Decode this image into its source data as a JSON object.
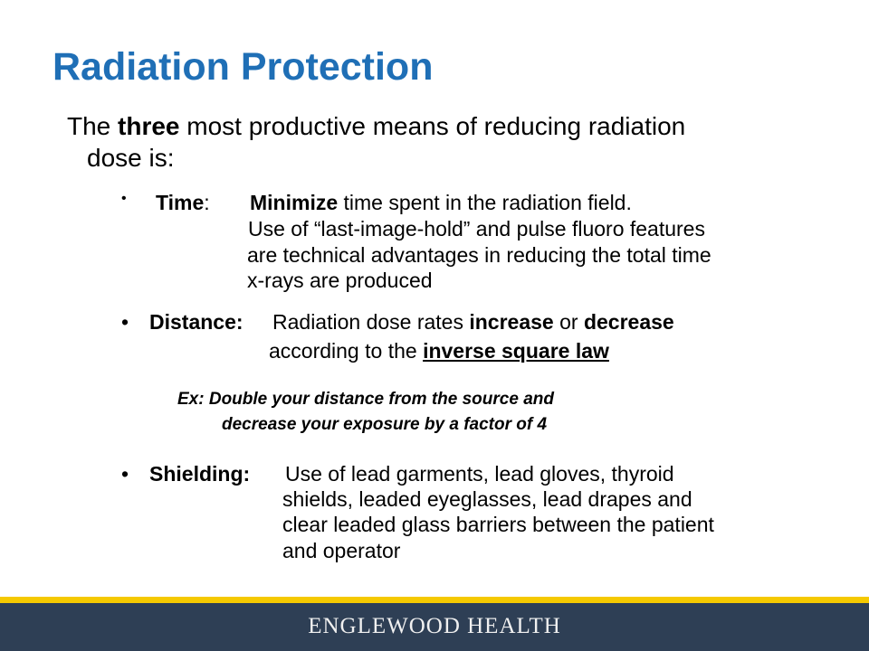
{
  "title": "Radiation Protection",
  "intro": {
    "pre": "The ",
    "bold": "three",
    "post": " most productive means of reducing radiation",
    "line2": "dose is:"
  },
  "time": {
    "bullet": "•",
    "label": "Time",
    "colon": ":",
    "bold": "Minimize",
    "rest": " time spent in the radiation field.",
    "lines": [
      "Use of “last-image-hold” and pulse fluoro features",
      "are technical advantages in reducing the total time",
      "x-rays are produced"
    ]
  },
  "distance": {
    "bullet": "•",
    "label": "Distance:",
    "pre": "Radiation dose rates ",
    "b1": "increase",
    "mid": " or ",
    "b2": "decrease",
    "line2pre": "according to the ",
    "line2link": "inverse square law"
  },
  "example": {
    "line1": "Ex:  Double your distance from the source and",
    "line2": "decrease  your  exposure by a factor of 4"
  },
  "shielding": {
    "bullet": "•",
    "label": "Shielding:",
    "lines": [
      "Use of lead garments, lead gloves, thyroid",
      "shields, leaded eyeglasses, lead drapes and",
      "clear leaded glass barriers between the patient",
      "and operator"
    ]
  },
  "footer": {
    "brand": "ENGLEWOOD HEALTH",
    "colors": {
      "navy": "#2e3f55",
      "gold": "#f5c900"
    }
  }
}
